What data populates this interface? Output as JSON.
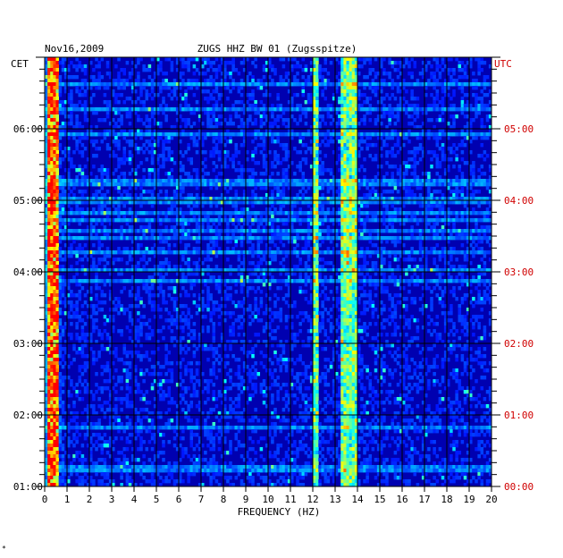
{
  "chart_data": {
    "type": "heatmap",
    "title_date": "Nov16,2009",
    "title_station": "ZUGS HHZ BW 01 (Zugsspitze)",
    "xlabel": "FREQUENCY (HZ)",
    "xlim": [
      0,
      20
    ],
    "x_ticks": [
      "0",
      "1",
      "2",
      "3",
      "4",
      "5",
      "6",
      "7",
      "8",
      "9",
      "10",
      "11",
      "12",
      "13",
      "14",
      "15",
      "16",
      "17",
      "18",
      "19",
      "20"
    ],
    "left_axis_label": "CET",
    "right_axis_label": "UTC",
    "left_ticks": [
      "06:00",
      "05:00",
      "04:00",
      "03:00",
      "02:00",
      "01:00"
    ],
    "right_ticks": [
      "05:00",
      "04:00",
      "03:00",
      "02:00",
      "01:00",
      "00:00"
    ],
    "grid": true,
    "colormap": [
      "#00007f",
      "#0000ff",
      "#00ffff",
      "#ffff00",
      "#ff0000"
    ],
    "bands": [
      {
        "freq_from": 0.1,
        "freq_to": 0.6,
        "level": "high"
      },
      {
        "freq_from": 12.0,
        "freq_to": 12.3,
        "level": "moderate"
      },
      {
        "freq_from": 13.2,
        "freq_to": 14.0,
        "level": "moderate"
      }
    ],
    "footnote": "*"
  }
}
